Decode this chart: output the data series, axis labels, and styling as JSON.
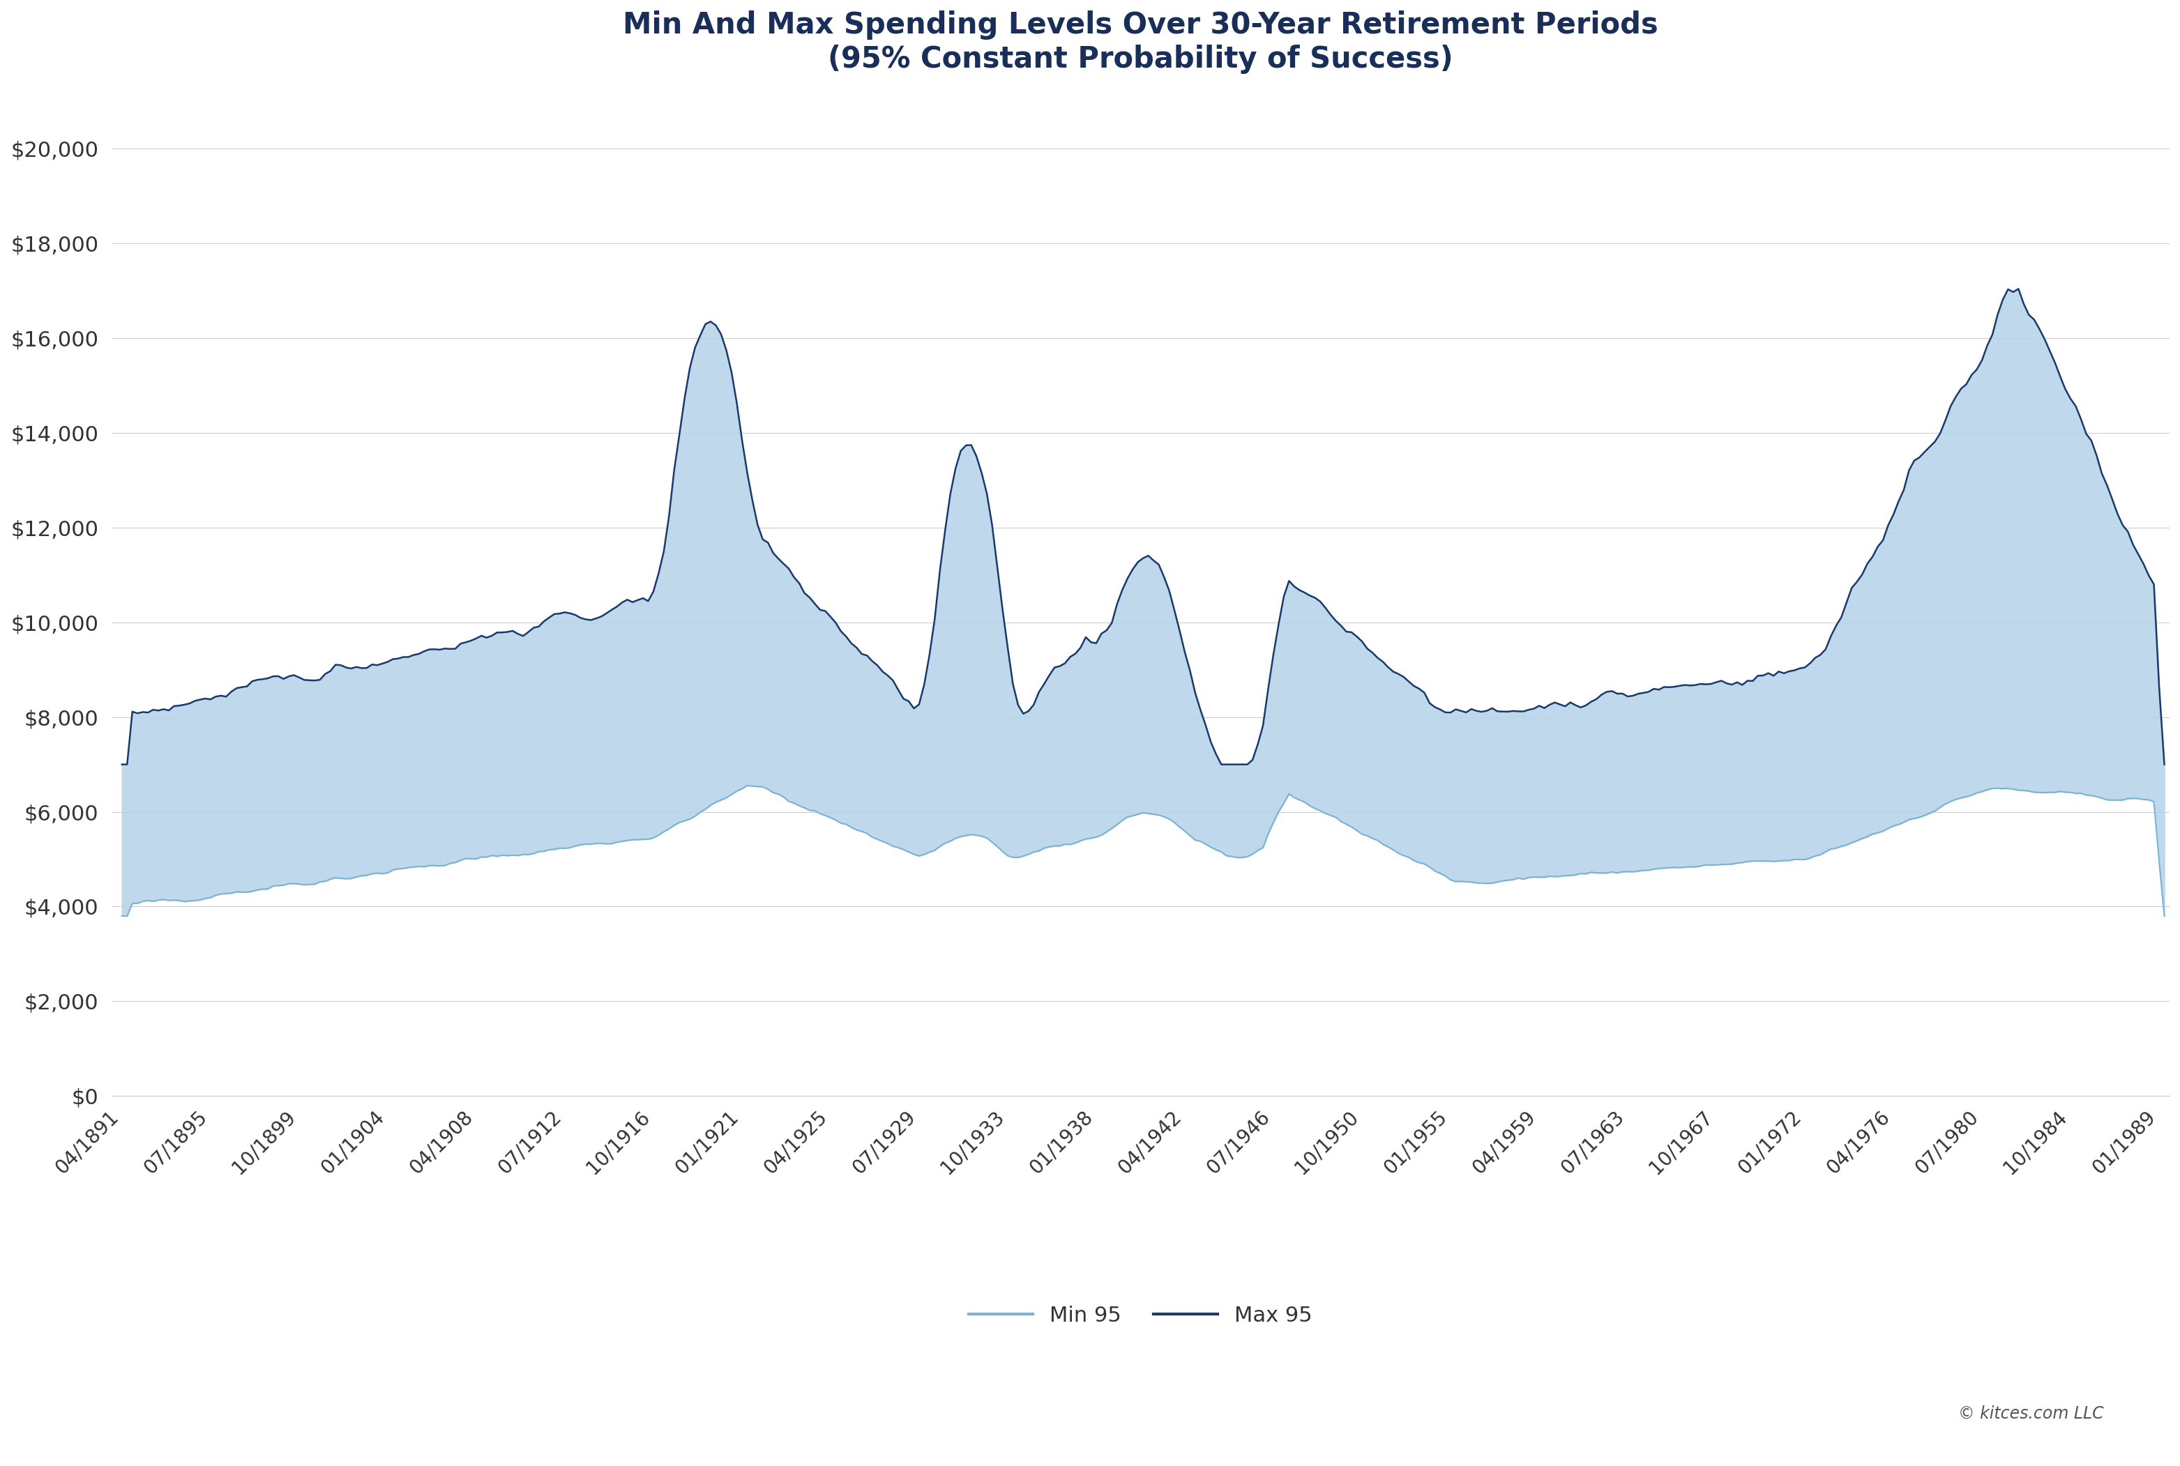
{
  "title_line1": "Min And Max Spending Levels Over 30-Year Retirement Periods",
  "title_line2": "(95% Constant Probability of Success)",
  "title_color": "#1a2e5a",
  "background_color": "#ffffff",
  "grid_color": "#cccccc",
  "fill_color_min_max": "#b8d4ea",
  "line_color_min": "#7ab3d4",
  "line_color_max": "#1a3a6b",
  "copyright_text": "© kitces.com LLC",
  "legend_label_min": "Min 95",
  "legend_label_max": "Max 95",
  "y_ticks": [
    0,
    2000,
    4000,
    6000,
    8000,
    10000,
    12000,
    14000,
    16000,
    18000,
    20000
  ],
  "ylim": [
    0,
    21000
  ],
  "x_tick_labels": [
    "04/1891",
    "07/1895",
    "10/1899",
    "01/1904",
    "04/1908",
    "07/1912",
    "10/1916",
    "01/1921",
    "04/1925",
    "07/1929",
    "10/1933",
    "01/1938",
    "04/1942",
    "07/1946",
    "10/1950",
    "01/1955",
    "04/1959",
    "07/1963",
    "10/1967",
    "01/1972",
    "04/1976",
    "07/1980",
    "10/1984",
    "01/1989"
  ],
  "x_tick_positions": [
    1891.25,
    1895.5,
    1899.75,
    1904.0,
    1908.25,
    1912.5,
    1916.75,
    1921.0,
    1925.25,
    1929.5,
    1933.75,
    1938.0,
    1942.25,
    1946.5,
    1950.75,
    1955.0,
    1959.25,
    1963.5,
    1967.75,
    1972.0,
    1976.25,
    1980.5,
    1984.75,
    1989.0
  ],
  "xlim_start": 1890.75,
  "xlim_end": 1989.5
}
